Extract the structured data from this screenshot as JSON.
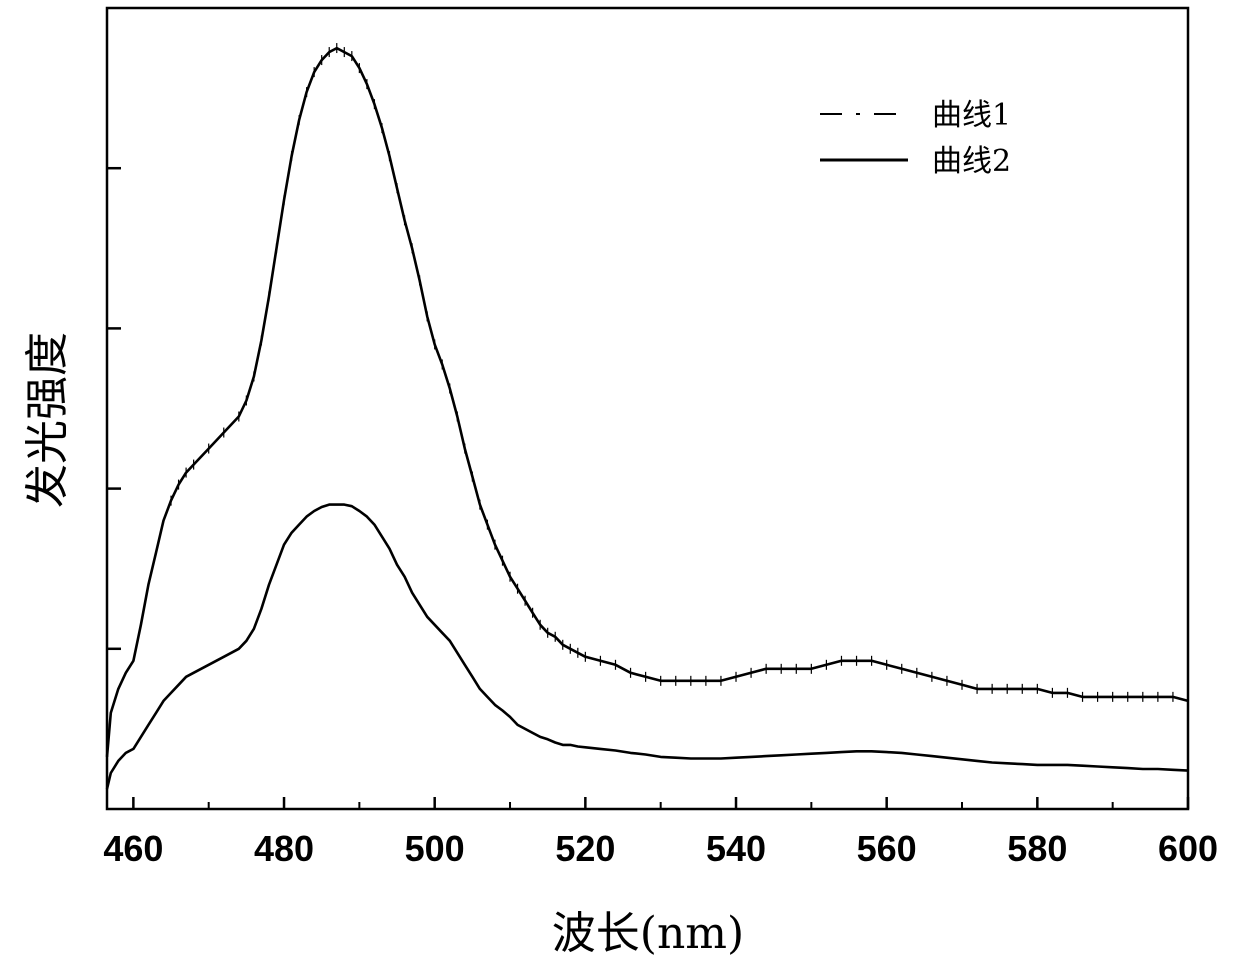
{
  "chart_data": {
    "type": "line",
    "xlabel": "波长(nm)",
    "ylabel": "发光强度",
    "xlim": [
      456.5,
      600
    ],
    "ylim": [
      0,
      100
    ],
    "xticks": [
      460,
      480,
      500,
      520,
      540,
      560,
      580,
      600
    ],
    "yticks": [
      20,
      40,
      60,
      80,
      100
    ],
    "show_y_tick_labels": false,
    "grid": false,
    "legend_position": "top-right",
    "series": [
      {
        "name": "曲线1",
        "style": "solid-with-tick-markers",
        "color": "#000000",
        "x": [
          456.5,
          457,
          458,
          459,
          460,
          461,
          462,
          463,
          464,
          465,
          466,
          467,
          468,
          470,
          472,
          474,
          475,
          476,
          477,
          478,
          479,
          480,
          481,
          482,
          483,
          484,
          485,
          486,
          487,
          488,
          489,
          490,
          491,
          492,
          493,
          494,
          495,
          496,
          497,
          498,
          499,
          500,
          501,
          502,
          503,
          504,
          505,
          506,
          507,
          508,
          509,
          510,
          511,
          512,
          513,
          514,
          515,
          516,
          517,
          518,
          519,
          520,
          522,
          524,
          526,
          528,
          530,
          532,
          534,
          536,
          538,
          540,
          542,
          544,
          546,
          548,
          550,
          552,
          554,
          556,
          558,
          560,
          562,
          564,
          566,
          568,
          570,
          572,
          574,
          576,
          578,
          580,
          582,
          584,
          586,
          588,
          590,
          592,
          594,
          596,
          598,
          600
        ],
        "y": [
          6.5,
          12,
          15,
          17,
          18.5,
          23,
          28,
          32,
          36,
          38.5,
          40.5,
          42,
          43,
          45,
          47,
          49,
          51,
          54,
          58.5,
          64,
          70,
          76,
          81.5,
          86,
          89.5,
          92,
          93.5,
          94.5,
          95,
          94.5,
          94,
          92.5,
          90.5,
          88,
          85,
          81.5,
          77.5,
          73.5,
          70,
          66,
          61.5,
          58,
          55.5,
          52.5,
          49,
          45,
          41.5,
          38,
          35.5,
          33,
          31,
          29,
          27.5,
          26,
          24.5,
          23,
          22,
          21.5,
          20.5,
          20,
          19.5,
          19,
          18.5,
          18,
          17,
          16.5,
          16,
          16,
          16,
          16,
          16,
          16.5,
          17,
          17.5,
          17.5,
          17.5,
          17.5,
          18,
          18.5,
          18.5,
          18.5,
          18,
          17.5,
          17,
          16.5,
          16,
          15.5,
          15,
          15,
          15,
          15,
          15,
          14.5,
          14.5,
          14,
          14,
          14,
          14,
          14,
          14,
          14,
          13.5
        ]
      },
      {
        "name": "曲线2",
        "style": "solid",
        "color": "#000000",
        "x": [
          456.5,
          457,
          458,
          459,
          460,
          461,
          462,
          463,
          464,
          465,
          466,
          467,
          468,
          470,
          472,
          474,
          475,
          476,
          477,
          478,
          479,
          480,
          481,
          482,
          483,
          484,
          485,
          486,
          487,
          488,
          489,
          490,
          491,
          492,
          493,
          494,
          495,
          496,
          497,
          498,
          499,
          500,
          501,
          502,
          503,
          504,
          505,
          506,
          507,
          508,
          509,
          510,
          511,
          512,
          513,
          514,
          515,
          516,
          517,
          518,
          519,
          520,
          522,
          524,
          526,
          528,
          530,
          532,
          534,
          536,
          538,
          540,
          542,
          544,
          546,
          548,
          550,
          552,
          554,
          556,
          558,
          560,
          562,
          564,
          566,
          568,
          570,
          572,
          574,
          576,
          578,
          580,
          582,
          584,
          586,
          588,
          590,
          592,
          594,
          596,
          598,
          600
        ],
        "y": [
          2.5,
          4.5,
          6,
          7,
          7.5,
          9,
          10.5,
          12,
          13.5,
          14.5,
          15.5,
          16.5,
          17,
          18,
          19,
          20,
          21,
          22.5,
          25,
          28,
          30.5,
          33,
          34.5,
          35.5,
          36.5,
          37.2,
          37.7,
          38,
          38,
          38,
          37.8,
          37.2,
          36.5,
          35.5,
          34,
          32.5,
          30.5,
          29,
          27,
          25.5,
          24,
          23,
          22,
          21,
          19.5,
          18,
          16.5,
          15,
          14,
          13,
          12.3,
          11.5,
          10.5,
          10,
          9.5,
          9,
          8.7,
          8.3,
          8,
          8,
          7.8,
          7.7,
          7.5,
          7.3,
          7,
          6.8,
          6.5,
          6.4,
          6.3,
          6.3,
          6.3,
          6.4,
          6.5,
          6.6,
          6.7,
          6.8,
          6.9,
          7,
          7.1,
          7.2,
          7.2,
          7.1,
          7,
          6.8,
          6.6,
          6.4,
          6.2,
          6,
          5.8,
          5.7,
          5.6,
          5.5,
          5.5,
          5.5,
          5.4,
          5.3,
          5.2,
          5.1,
          5,
          5,
          4.9,
          4.8
        ]
      }
    ]
  }
}
